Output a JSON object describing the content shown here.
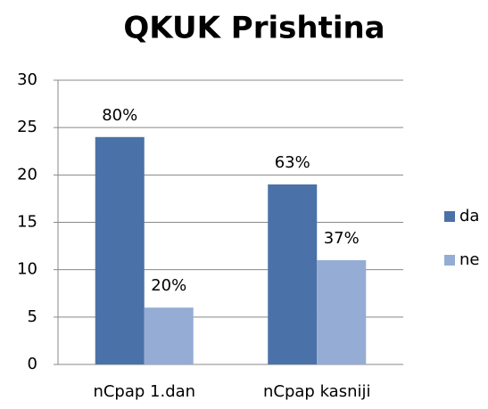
{
  "chart_data": {
    "type": "bar",
    "title": "QKUK Prishtina",
    "categories": [
      "nCpap 1.dan",
      "nCpap kasniji"
    ],
    "series": [
      {
        "name": "da",
        "color": "#4a72a8",
        "values": [
          24,
          19
        ],
        "labels": [
          "80%",
          "63%"
        ]
      },
      {
        "name": "ne",
        "color": "#95acd4",
        "values": [
          6,
          11
        ],
        "labels": [
          "20%",
          "37%"
        ]
      }
    ],
    "ylim": [
      0,
      30
    ],
    "yticks": [
      0,
      5,
      10,
      15,
      20,
      25,
      30
    ],
    "grid": true,
    "legend": "right"
  }
}
